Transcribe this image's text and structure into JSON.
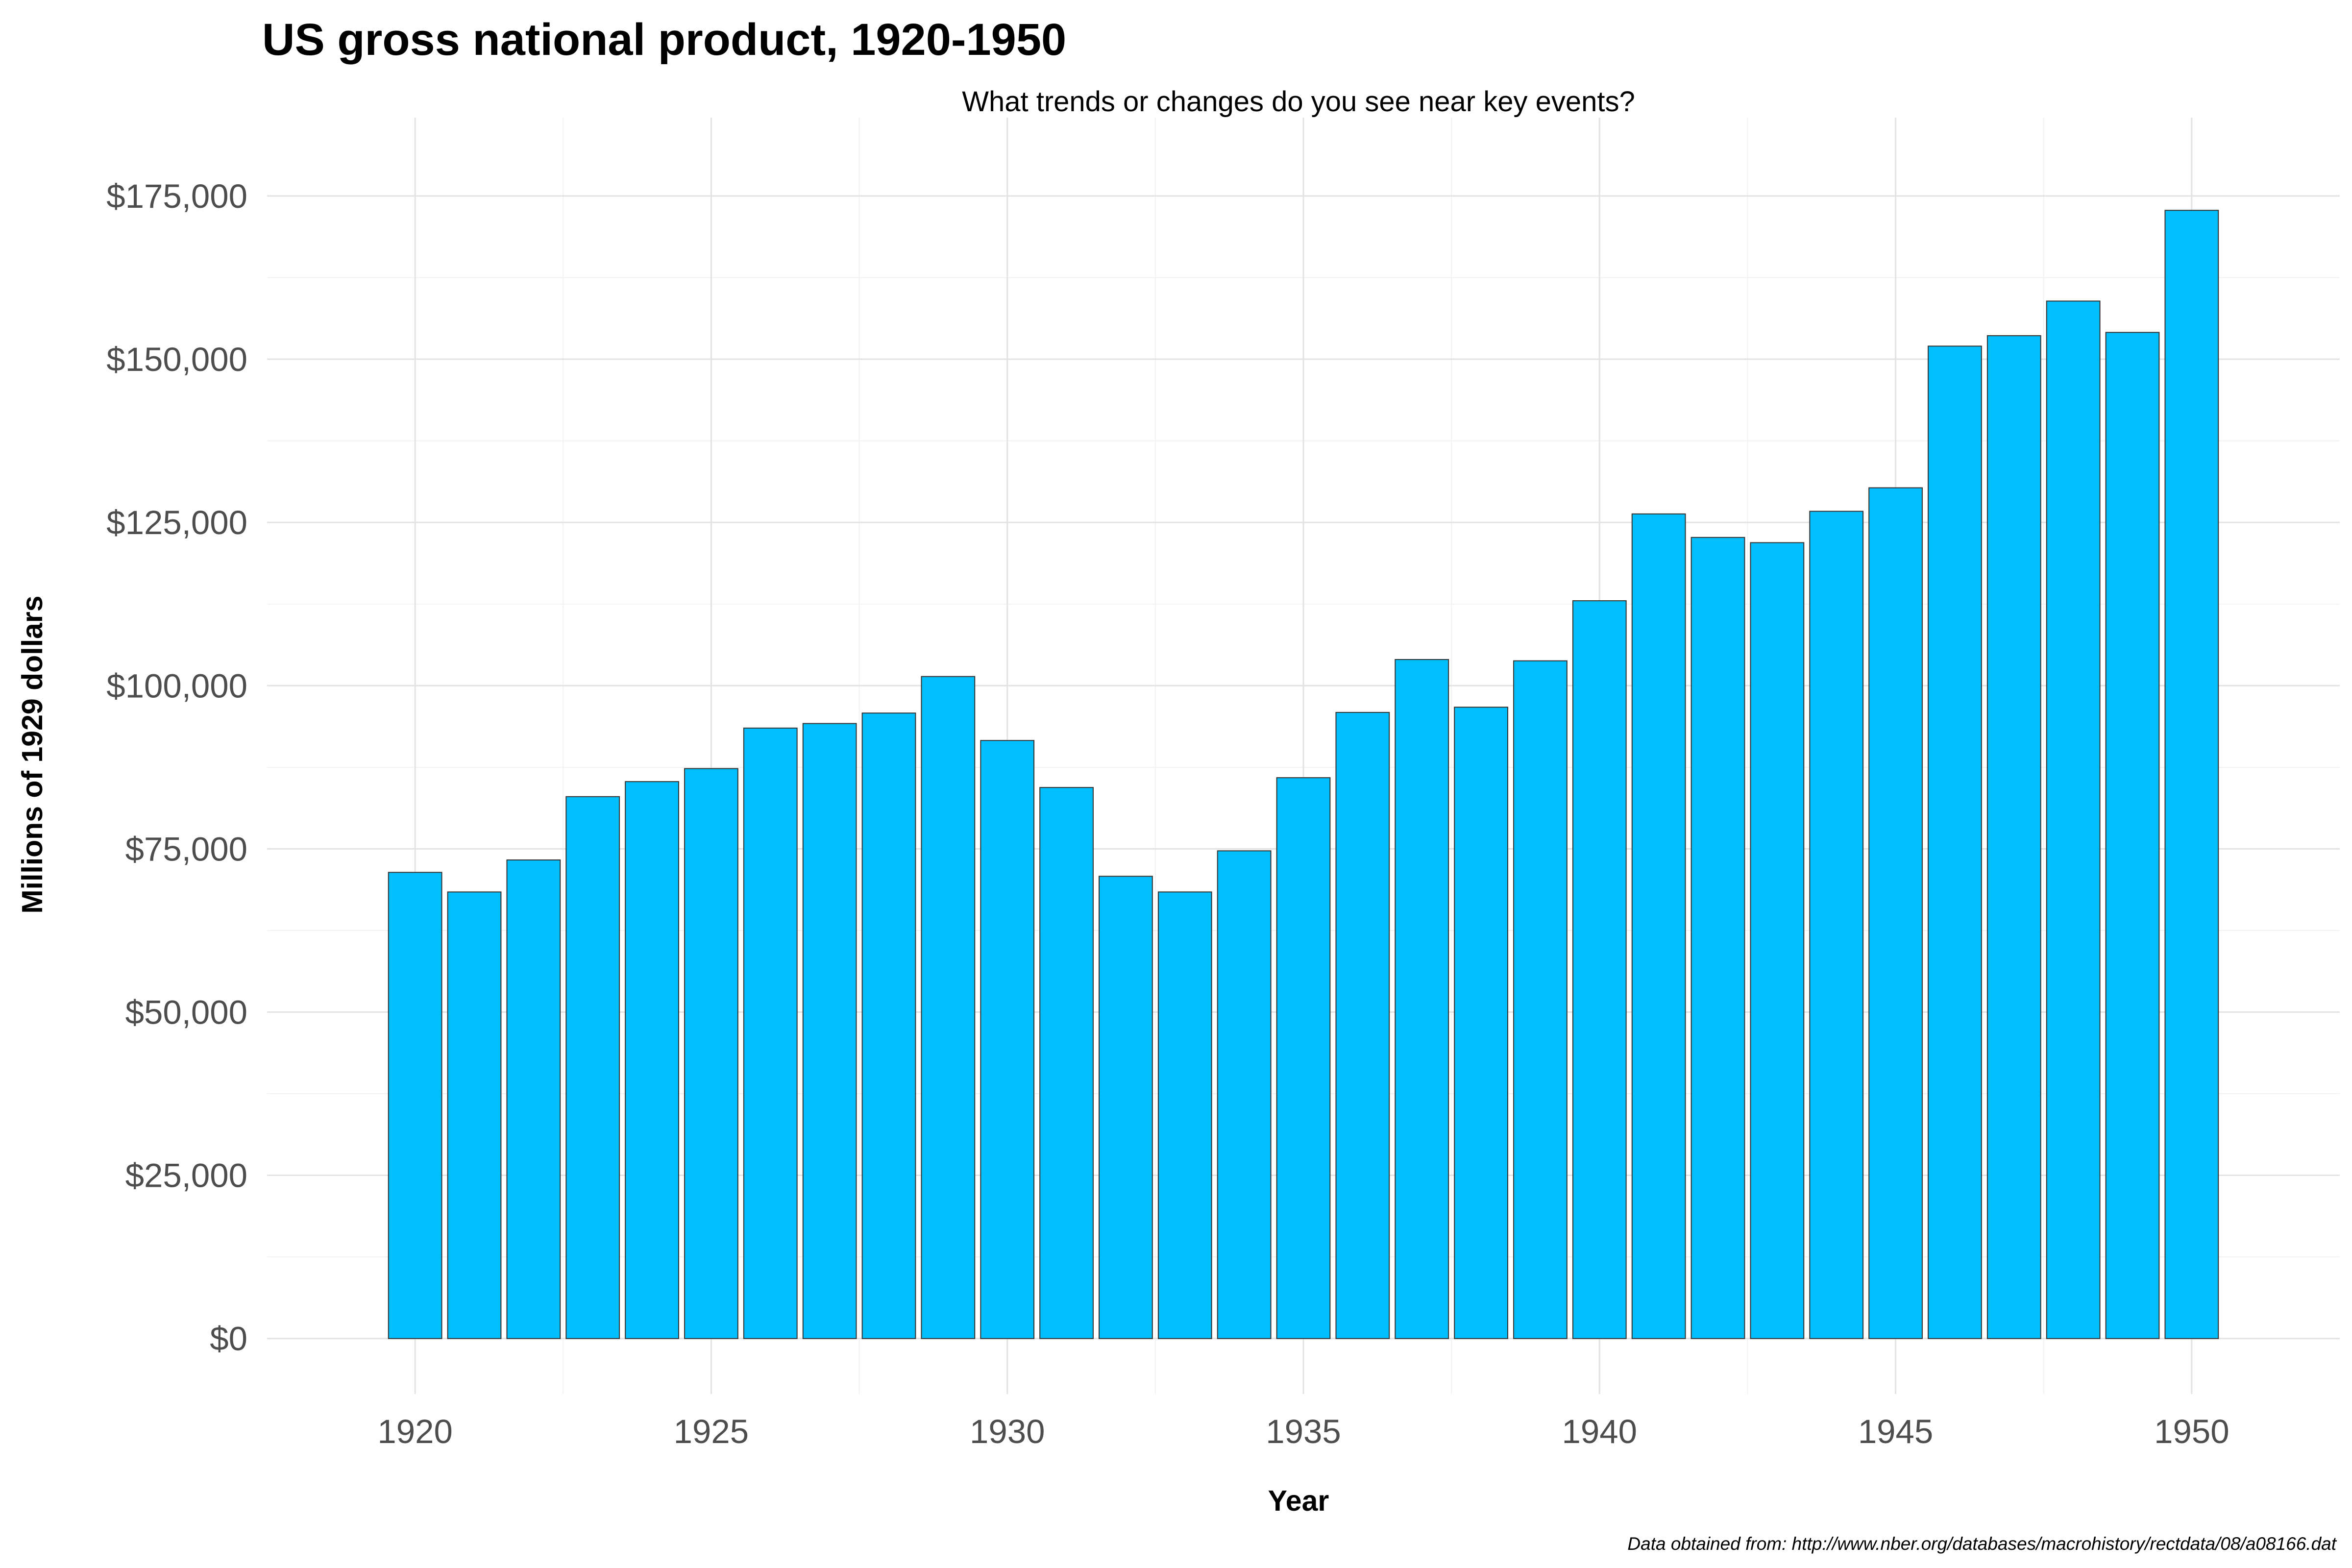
{
  "chart_data": {
    "type": "bar",
    "title": "US gross national product, 1920-1950",
    "subtitle": "What trends or changes do you see near key events?",
    "xlabel": "Year",
    "ylabel": "Millions of 1929 dollars",
    "caption": "Data obtained from: http://www.nber.org/databases/macrohistory/rectdata/08/a08166.dat",
    "bar_color": "#00BFFF",
    "grid": true,
    "legend": "none",
    "xlim": [
      1917.5,
      1952.5
    ],
    "ylim": [
      -8500,
      187000
    ],
    "x_ticks": [
      1920,
      1925,
      1930,
      1935,
      1940,
      1945,
      1950
    ],
    "y_ticks": [
      0,
      25000,
      50000,
      75000,
      100000,
      125000,
      150000,
      175000
    ],
    "y_tick_labels": [
      "$0",
      "$25,000",
      "$50,000",
      "$75,000",
      "$100,000",
      "$125,000",
      "$150,000",
      "$175,000"
    ],
    "x_tick_labels": [
      "1920",
      "1925",
      "1930",
      "1935",
      "1940",
      "1945",
      "1950"
    ],
    "categories": [
      1920,
      1921,
      1922,
      1923,
      1924,
      1925,
      1926,
      1927,
      1928,
      1929,
      1930,
      1931,
      1932,
      1933,
      1934,
      1935,
      1936,
      1937,
      1938,
      1939,
      1940,
      1941,
      1942,
      1943,
      1944,
      1945,
      1946,
      1947,
      1948,
      1949,
      1950
    ],
    "values": [
      71400,
      68400,
      73300,
      83000,
      85300,
      87300,
      93500,
      94200,
      95800,
      101400,
      91600,
      84400,
      70800,
      68400,
      74700,
      85900,
      95900,
      104000,
      96700,
      103800,
      113000,
      126300,
      122700,
      121900,
      126700,
      130300,
      152000,
      153600,
      158900,
      154100,
      172800
    ]
  }
}
